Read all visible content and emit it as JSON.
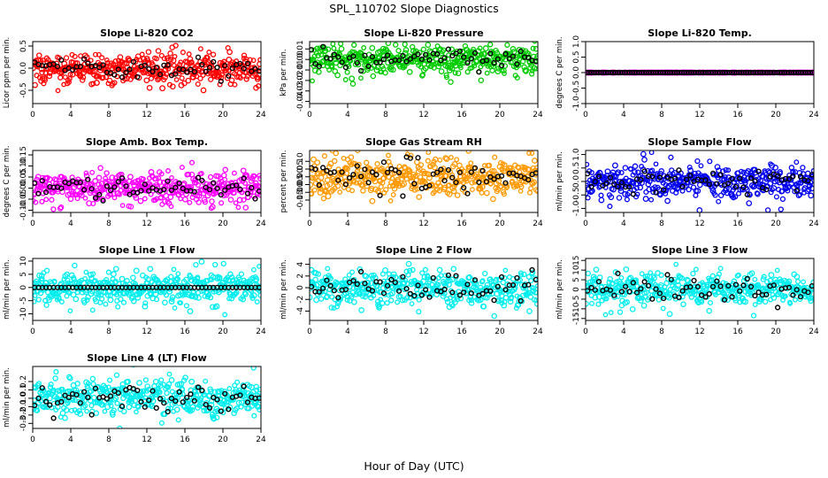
{
  "figure": {
    "title": "SPL_110702  Slope Diagnostics",
    "xlabel": "Hour of Day (UTC)"
  },
  "chart_data": [
    {
      "type": "scatter",
      "title": "Slope Li-820 CO2",
      "ylabel": "Licor ppm per min.",
      "xlim": [
        0,
        24
      ],
      "ylim": [
        -0.8,
        0.6
      ],
      "xticks": [
        0,
        4,
        8,
        12,
        16,
        20,
        24
      ],
      "yticks": [
        -0.5,
        0.0,
        0.5
      ],
      "ytick_labels": [
        "-0.5",
        "0.0",
        "0.5"
      ],
      "color": "#ff0000",
      "noise": 0.17,
      "black_noise": 0.12
    },
    {
      "type": "scatter",
      "title": "Slope Li-820 Pressure",
      "ylabel": "kPa per min.",
      "xlim": [
        0,
        24
      ],
      "ylim": [
        -0.042,
        0.017
      ],
      "xticks": [
        0,
        4,
        8,
        12,
        16,
        20,
        24
      ],
      "yticks": [
        -0.04,
        -0.03,
        -0.02,
        -0.01,
        0.0,
        0.01
      ],
      "ytick_labels": [
        "-0.04",
        "-0.03",
        "-0.02",
        "-0.01",
        "0.00",
        "0.01"
      ],
      "color": "#00cc00",
      "noise": 0.007,
      "black_noise": 0.005
    },
    {
      "type": "scatter",
      "title": "Slope Li-820 Temp.",
      "ylabel": "degrees C per min.",
      "xlim": [
        0,
        24
      ],
      "ylim": [
        -1.0,
        1.0
      ],
      "xticks": [
        0,
        4,
        8,
        12,
        16,
        20,
        24
      ],
      "yticks": [
        -1.0,
        -0.5,
        0.0,
        0.5,
        1.0
      ],
      "ytick_labels": [
        "-1.0",
        "-0.5",
        "0.0",
        "0.5",
        "1.0"
      ],
      "color": "#ff00ff",
      "noise": 0,
      "black_noise": 0
    },
    {
      "type": "scatter",
      "title": "Slope Amb. Box Temp.",
      "ylabel": "degrees C per min.",
      "xlim": [
        0,
        24
      ],
      "ylim": [
        -0.11,
        0.17
      ],
      "xticks": [
        0,
        4,
        8,
        12,
        16,
        20,
        24
      ],
      "yticks": [
        -0.1,
        -0.05,
        0.0,
        0.05,
        0.1,
        0.15
      ],
      "ytick_labels": [
        "-0.10",
        "-0.05",
        "0.00",
        "0.05",
        "0.10",
        "0.15"
      ],
      "color": "#ff00ff",
      "noise": 0.035,
      "black_noise": 0.025
    },
    {
      "type": "scatter",
      "title": "Slope Gas Stream RH",
      "ylabel": "percent per min.",
      "xlim": [
        0,
        24
      ],
      "ylim": [
        -0.23,
        0.17
      ],
      "xticks": [
        0,
        4,
        8,
        12,
        16,
        20,
        24
      ],
      "yticks": [
        -0.15,
        -0.1,
        -0.05,
        0.0,
        0.05,
        0.1
      ],
      "ytick_labels": [
        "-0.15",
        "-0.10",
        "-0.05",
        "0.00",
        "0.05",
        "0.10"
      ],
      "color": "#ff9900",
      "noise": 0.065,
      "black_noise": 0.05
    },
    {
      "type": "scatter",
      "title": "Slope Sample Flow",
      "ylabel": "ml/min per min.",
      "xlim": [
        0,
        24
      ],
      "ylim": [
        -1.15,
        1.15
      ],
      "xticks": [
        0,
        4,
        8,
        12,
        16,
        20,
        24
      ],
      "yticks": [
        -1.0,
        -0.5,
        0.0,
        0.5,
        1.0
      ],
      "ytick_labels": [
        "-1.0",
        "-0.5",
        "0.0",
        "0.5",
        "1.0"
      ],
      "color": "#0000ee",
      "noise": 0.3,
      "black_noise": 0.22
    },
    {
      "type": "scatter",
      "title": "Slope Line 1 Flow",
      "ylabel": "ml/min per min.",
      "xlim": [
        0,
        24
      ],
      "ylim": [
        -12.5,
        11
      ],
      "xticks": [
        0,
        4,
        8,
        12,
        16,
        20,
        24
      ],
      "yticks": [
        -10,
        -5,
        0,
        5,
        10
      ],
      "ytick_labels": [
        "-10",
        "-5",
        "0",
        "5",
        "10"
      ],
      "color": "#00eeee",
      "noise": 3.2,
      "black_noise": 0
    },
    {
      "type": "scatter",
      "title": "Slope Line 2 Flow",
      "ylabel": "ml/min per min.",
      "xlim": [
        0,
        24
      ],
      "ylim": [
        -5.6,
        5.0
      ],
      "xticks": [
        0,
        4,
        8,
        12,
        16,
        20,
        24
      ],
      "yticks": [
        -4,
        -2,
        0,
        2,
        4
      ],
      "ytick_labels": [
        "-4",
        "-2",
        "0",
        "2",
        "4"
      ],
      "color": "#00eeee",
      "noise": 1.5,
      "black_noise": 1.3
    },
    {
      "type": "scatter",
      "title": "Slope Line 3 Flow",
      "ylabel": "ml/min per min.",
      "xlim": [
        0,
        24
      ],
      "ylim": [
        -16,
        16
      ],
      "xticks": [
        0,
        4,
        8,
        12,
        16,
        20,
        24
      ],
      "yticks": [
        -15,
        -10,
        -5,
        0,
        5,
        10,
        15
      ],
      "ytick_labels": [
        "-15",
        "-10",
        "-5",
        "0",
        "5",
        "10",
        "15"
      ],
      "color": "#00eeee",
      "noise": 4.2,
      "black_noise": 3.2
    },
    {
      "type": "scatter",
      "title": "Slope Line 4 (LT) Flow",
      "ylabel": "ml/min per min.",
      "xlim": [
        0,
        24
      ],
      "ylim": [
        -0.36,
        0.38
      ],
      "xticks": [
        0,
        4,
        8,
        12,
        16,
        20,
        24
      ],
      "yticks": [
        -0.3,
        -0.2,
        -0.1,
        0.0,
        0.1,
        0.2
      ],
      "ytick_labels": [
        "-0.3",
        "-0.2",
        "-0.1",
        "0.0",
        "0.1",
        "0.2"
      ],
      "color": "#00eeee",
      "noise": 0.11,
      "black_noise": 0.09
    }
  ]
}
